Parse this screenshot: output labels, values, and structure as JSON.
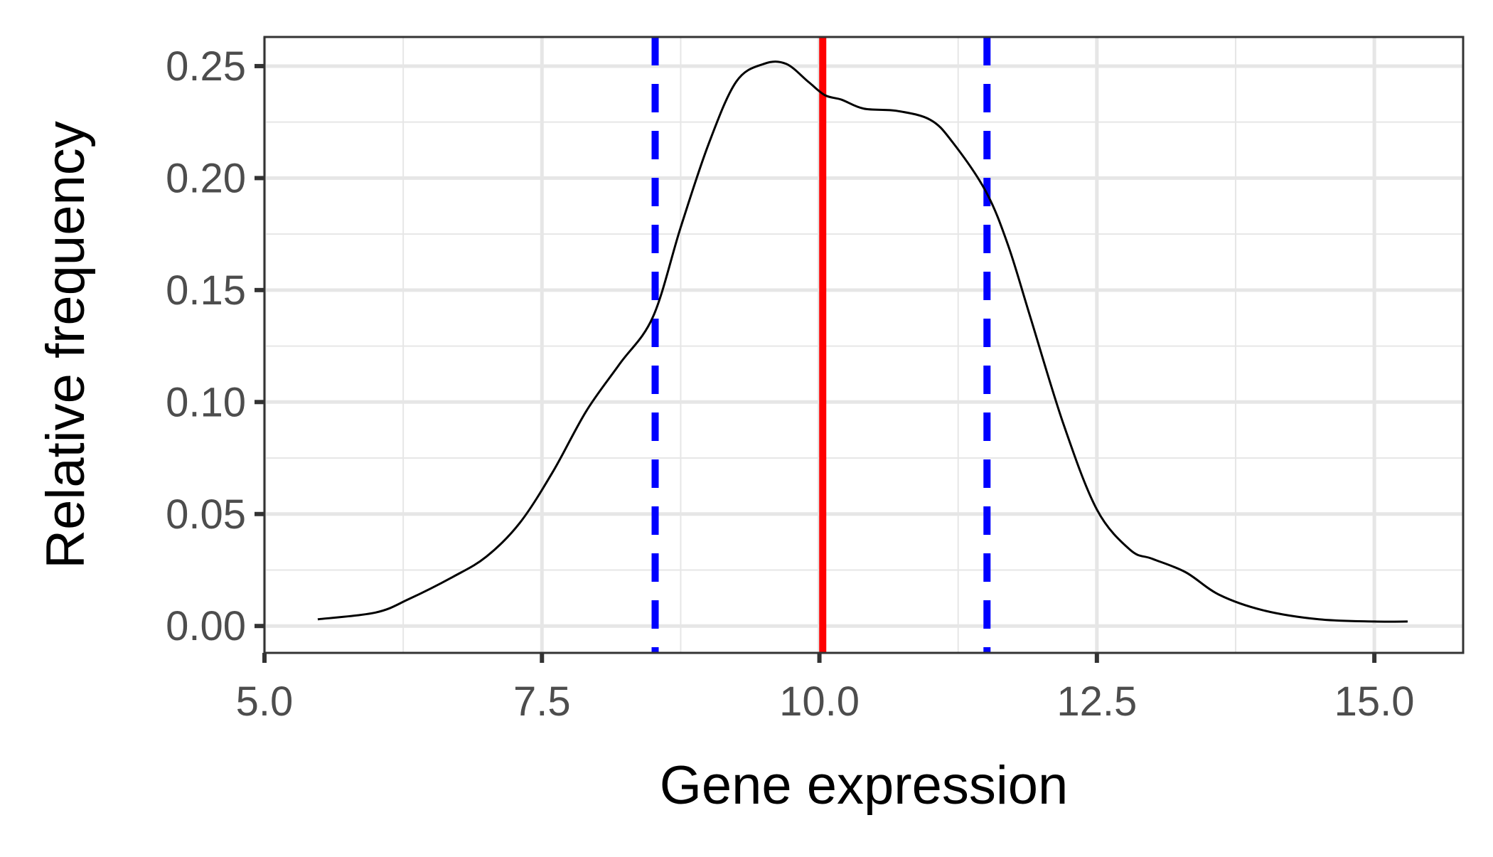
{
  "chart_data": {
    "type": "line",
    "title": "",
    "xlabel": "Gene expression",
    "ylabel": "Relative frequency",
    "xlim": [
      5.0,
      15.8
    ],
    "ylim": [
      -0.012,
      0.263
    ],
    "x_ticks": [
      5.0,
      7.5,
      10.0,
      12.5,
      15.0
    ],
    "x_tick_labels": [
      "5.0",
      "7.5",
      "10.0",
      "12.5",
      "15.0"
    ],
    "y_ticks": [
      0.0,
      0.05,
      0.1,
      0.15,
      0.2,
      0.25
    ],
    "y_tick_labels": [
      "0.00",
      "0.05",
      "0.10",
      "0.15",
      "0.20",
      "0.25"
    ],
    "grid": true,
    "legend": "none",
    "series": [
      {
        "kind": "density-curve",
        "color": "#000000",
        "x": [
          5.48,
          6.0,
          6.3,
          6.7,
          7.0,
          7.3,
          7.6,
          7.9,
          8.2,
          8.5,
          8.75,
          9.0,
          9.25,
          9.5,
          9.7,
          9.9,
          10.05,
          10.2,
          10.4,
          10.7,
          11.0,
          11.2,
          11.5,
          11.7,
          11.9,
          12.2,
          12.5,
          12.8,
          13.0,
          13.3,
          13.6,
          14.0,
          14.5,
          15.0,
          15.3
        ],
        "y": [
          0.003,
          0.006,
          0.012,
          0.022,
          0.031,
          0.046,
          0.069,
          0.096,
          0.117,
          0.138,
          0.178,
          0.215,
          0.243,
          0.251,
          0.251,
          0.243,
          0.237,
          0.235,
          0.231,
          0.23,
          0.226,
          0.216,
          0.194,
          0.17,
          0.138,
          0.09,
          0.052,
          0.034,
          0.03,
          0.024,
          0.014,
          0.007,
          0.003,
          0.002,
          0.002
        ]
      }
    ],
    "vlines": [
      {
        "x": 10.03,
        "style": "solid",
        "color": "#ff0000"
      },
      {
        "x": 8.52,
        "style": "dashed",
        "color": "#0000ff"
      },
      {
        "x": 11.51,
        "style": "dashed",
        "color": "#0000ff"
      }
    ],
    "colors": {
      "grid": "#e6e6e6",
      "panel_border": "#333333",
      "tick_label": "#4d4d4d",
      "axis_title": "#000000"
    }
  }
}
